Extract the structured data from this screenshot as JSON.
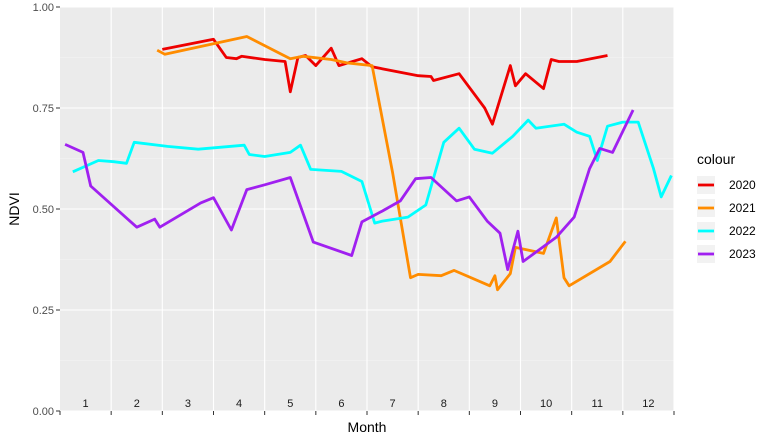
{
  "chart_data": {
    "type": "line",
    "xlabel": "Month",
    "ylabel": "NDVI",
    "xlim": [
      0.5,
      12.5
    ],
    "ylim": [
      0,
      1
    ],
    "y_ticks": [
      0.0,
      0.25,
      0.5,
      0.75,
      1.0
    ],
    "y_tick_labels": [
      "0.00",
      "0.25",
      "0.50",
      "0.75",
      "1.00"
    ],
    "month_labels": [
      "1",
      "2",
      "3",
      "4",
      "5",
      "6",
      "7",
      "8",
      "9",
      "10",
      "11",
      "12"
    ],
    "grid": true,
    "legend": {
      "title": "colour",
      "position": "right"
    },
    "series": [
      {
        "name": "2020",
        "color": "#ee0000",
        "points": [
          [
            2.5,
            0.895
          ],
          [
            3.5,
            0.92
          ],
          [
            3.75,
            0.875
          ],
          [
            3.95,
            0.872
          ],
          [
            4.05,
            0.878
          ],
          [
            4.5,
            0.87
          ],
          [
            4.9,
            0.865
          ],
          [
            5.0,
            0.79
          ],
          [
            5.15,
            0.875
          ],
          [
            5.3,
            0.88
          ],
          [
            5.5,
            0.855
          ],
          [
            5.8,
            0.898
          ],
          [
            5.95,
            0.855
          ],
          [
            6.4,
            0.872
          ],
          [
            6.6,
            0.852
          ],
          [
            7.5,
            0.83
          ],
          [
            7.75,
            0.828
          ],
          [
            7.8,
            0.818
          ],
          [
            8.3,
            0.835
          ],
          [
            8.8,
            0.75
          ],
          [
            8.95,
            0.71
          ],
          [
            9.3,
            0.855
          ],
          [
            9.4,
            0.805
          ],
          [
            9.6,
            0.835
          ],
          [
            9.95,
            0.798
          ],
          [
            10.1,
            0.87
          ],
          [
            10.25,
            0.865
          ],
          [
            10.6,
            0.865
          ],
          [
            11.2,
            0.88
          ]
        ]
      },
      {
        "name": "2021",
        "color": "#ff8c00",
        "points": [
          [
            2.4,
            0.893
          ],
          [
            2.55,
            0.883
          ],
          [
            4.15,
            0.927
          ],
          [
            4.8,
            0.885
          ],
          [
            5.0,
            0.872
          ],
          [
            5.25,
            0.878
          ],
          [
            5.8,
            0.87
          ],
          [
            6.1,
            0.862
          ],
          [
            6.6,
            0.855
          ],
          [
            7.0,
            0.59
          ],
          [
            7.35,
            0.33
          ],
          [
            7.5,
            0.338
          ],
          [
            7.95,
            0.335
          ],
          [
            8.2,
            0.348
          ],
          [
            8.9,
            0.31
          ],
          [
            9.0,
            0.335
          ],
          [
            9.05,
            0.3
          ],
          [
            9.3,
            0.34
          ],
          [
            9.4,
            0.405
          ],
          [
            9.95,
            0.39
          ],
          [
            10.2,
            0.478
          ],
          [
            10.35,
            0.33
          ],
          [
            10.45,
            0.31
          ],
          [
            11.25,
            0.37
          ],
          [
            11.55,
            0.42
          ]
        ]
      },
      {
        "name": "2022",
        "color": "#00ffff",
        "points": [
          [
            0.75,
            0.592
          ],
          [
            1.25,
            0.62
          ],
          [
            1.55,
            0.617
          ],
          [
            1.8,
            0.613
          ],
          [
            1.95,
            0.665
          ],
          [
            2.6,
            0.655
          ],
          [
            3.2,
            0.648
          ],
          [
            4.1,
            0.658
          ],
          [
            4.2,
            0.635
          ],
          [
            4.5,
            0.63
          ],
          [
            5.0,
            0.64
          ],
          [
            5.2,
            0.658
          ],
          [
            5.4,
            0.598
          ],
          [
            6.0,
            0.593
          ],
          [
            6.4,
            0.568
          ],
          [
            6.65,
            0.465
          ],
          [
            6.8,
            0.47
          ],
          [
            7.3,
            0.48
          ],
          [
            7.65,
            0.51
          ],
          [
            8.0,
            0.665
          ],
          [
            8.3,
            0.7
          ],
          [
            8.6,
            0.648
          ],
          [
            8.95,
            0.638
          ],
          [
            9.35,
            0.68
          ],
          [
            9.65,
            0.72
          ],
          [
            9.8,
            0.7
          ],
          [
            10.35,
            0.71
          ],
          [
            10.6,
            0.69
          ],
          [
            10.85,
            0.68
          ],
          [
            11.0,
            0.62
          ],
          [
            11.2,
            0.705
          ],
          [
            11.5,
            0.715
          ],
          [
            11.8,
            0.715
          ],
          [
            12.1,
            0.6
          ],
          [
            12.25,
            0.53
          ],
          [
            12.45,
            0.583
          ]
        ]
      },
      {
        "name": "2023",
        "color": "#a020f0",
        "points": [
          [
            0.6,
            0.66
          ],
          [
            0.95,
            0.64
          ],
          [
            1.1,
            0.557
          ],
          [
            2.0,
            0.455
          ],
          [
            2.35,
            0.475
          ],
          [
            2.45,
            0.455
          ],
          [
            3.25,
            0.515
          ],
          [
            3.5,
            0.528
          ],
          [
            3.85,
            0.448
          ],
          [
            4.15,
            0.548
          ],
          [
            4.5,
            0.56
          ],
          [
            5.0,
            0.578
          ],
          [
            5.45,
            0.418
          ],
          [
            6.2,
            0.385
          ],
          [
            6.4,
            0.468
          ],
          [
            6.8,
            0.495
          ],
          [
            7.15,
            0.52
          ],
          [
            7.45,
            0.575
          ],
          [
            7.75,
            0.578
          ],
          [
            8.25,
            0.52
          ],
          [
            8.5,
            0.53
          ],
          [
            8.85,
            0.47
          ],
          [
            9.1,
            0.44
          ],
          [
            9.25,
            0.35
          ],
          [
            9.45,
            0.445
          ],
          [
            9.55,
            0.37
          ],
          [
            10.2,
            0.43
          ],
          [
            10.55,
            0.48
          ],
          [
            10.85,
            0.6
          ],
          [
            11.05,
            0.65
          ],
          [
            11.3,
            0.64
          ],
          [
            11.7,
            0.745
          ]
        ]
      }
    ]
  }
}
